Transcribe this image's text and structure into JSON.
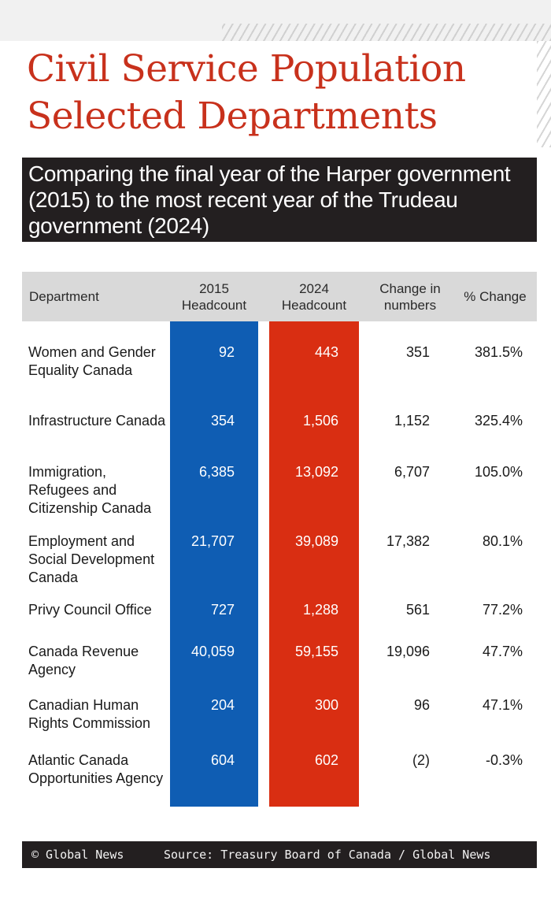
{
  "title_line1": "Civil Service Population",
  "title_line2": "Selected Departments",
  "subtitle": "Comparing the final year of the Harper government (2015) to the most recent year of the Trudeau government (2024)",
  "columns": {
    "department": "Department",
    "h2015_year": "2015",
    "h2015_label": "Headcount",
    "h2024_year": "2024",
    "h2024_label": "Headcount",
    "change_line1": "Change in",
    "change_line2": "numbers",
    "pct": "% Change"
  },
  "chart_data": {
    "type": "table",
    "title": "Civil Service Population Selected Departments",
    "subtitle": "Comparing the final year of the Harper government (2015) to the most recent year of the Trudeau government (2024)",
    "columns": [
      "Department",
      "2015 Headcount",
      "2024 Headcount",
      "Change in numbers",
      "% Change"
    ],
    "rows": [
      {
        "department": "Women and Gender Equality Canada",
        "h2015": "92",
        "h2024": "443",
        "change": "351",
        "pct": "381.5%"
      },
      {
        "department": "Infrastructure Canada",
        "h2015": "354",
        "h2024": "1,506",
        "change": "1,152",
        "pct": "325.4%"
      },
      {
        "department": "Immigration, Refugees and Citizenship Canada",
        "h2015": "6,385",
        "h2024": "13,092",
        "change": "6,707",
        "pct": "105.0%"
      },
      {
        "department": "Employment and Social Development Canada",
        "h2015": "21,707",
        "h2024": "39,089",
        "change": "17,382",
        "pct": "80.1%"
      },
      {
        "department": "Privy Council Office",
        "h2015": "727",
        "h2024": "1,288",
        "change": "561",
        "pct": "77.2%"
      },
      {
        "department": "Canada Revenue Agency",
        "h2015": "40,059",
        "h2024": "59,155",
        "change": "19,096",
        "pct": "47.7%"
      },
      {
        "department": "Canadian Human Rights Commission",
        "h2015": "204",
        "h2024": "300",
        "change": "96",
        "pct": "47.1%"
      },
      {
        "department": "Atlantic Canada Opportunities Agency",
        "h2015": "604",
        "h2024": "602",
        "change": "(2)",
        "pct": "-0.3%"
      }
    ],
    "colors": {
      "h2015": "#0f5db3",
      "h2024": "#d92e12",
      "title": "#c8311c"
    }
  },
  "footer": {
    "credit": "© Global News",
    "source": "Source: Treasury Board of Canada / Global News"
  }
}
